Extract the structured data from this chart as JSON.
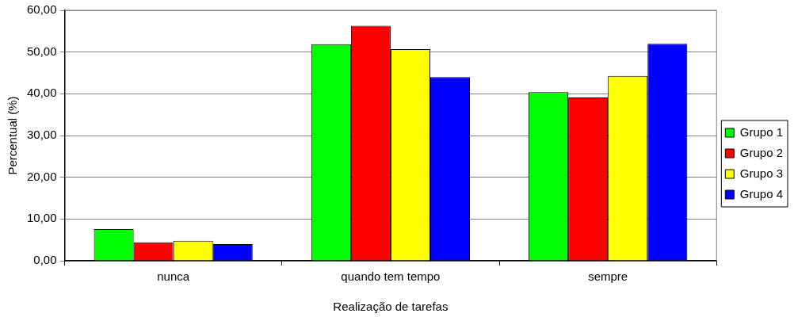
{
  "chart_data": {
    "type": "bar",
    "xlabel": "Realização de tarefas",
    "ylabel": "Percentual (%)",
    "categories": [
      "nunca",
      "quando tem tempo",
      "sempre"
    ],
    "series": [
      {
        "name": "Grupo 1",
        "color": "#00ff00",
        "values": [
          7.6,
          51.9,
          40.4
        ]
      },
      {
        "name": "Grupo 2",
        "color": "#ff0000",
        "values": [
          4.4,
          56.3,
          39.1
        ]
      },
      {
        "name": "Grupo 3",
        "color": "#ffff00",
        "values": [
          4.8,
          50.7,
          44.3
        ]
      },
      {
        "name": "Grupo 4",
        "color": "#0000ff",
        "values": [
          4.0,
          44.0,
          52.0
        ]
      }
    ],
    "ylim": [
      0,
      60
    ],
    "yticks": [
      {
        "value": 0,
        "label": "0,00"
      },
      {
        "value": 10,
        "label": "10,00"
      },
      {
        "value": 20,
        "label": "20,00"
      },
      {
        "value": 30,
        "label": "30,00"
      },
      {
        "value": 40,
        "label": "40,00"
      },
      {
        "value": 50,
        "label": "50,00"
      },
      {
        "value": 60,
        "label": "60,00"
      }
    ],
    "grid": "y",
    "legend": "right"
  }
}
